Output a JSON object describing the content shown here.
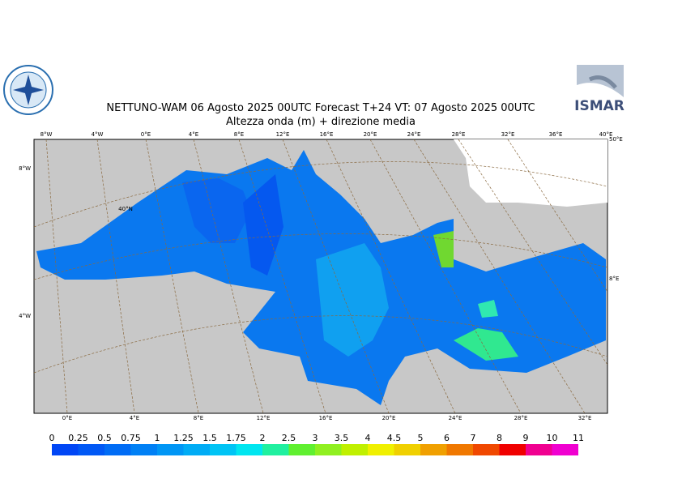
{
  "header": {
    "title": "NETTUNO-WAM  06   Agosto  2025 00UTC Forecast T+24 VT: 07   Agosto  2025 00UTC",
    "subtitle": "Altezza onda (m) + direzione media",
    "logo_right": "ISMAR"
  },
  "map": {
    "top_labels": [
      "8°W",
      "4°W",
      "0°E",
      "4°E",
      "8°E",
      "12°E",
      "16°E",
      "20°E",
      "24°E",
      "28°E",
      "32°E",
      "36°E",
      "40°E"
    ],
    "bottom_labels": [
      "0°E",
      "4°E",
      "8°E",
      "12°E",
      "16°E",
      "20°E",
      "24°E",
      "28°E",
      "32°E"
    ],
    "left_labels": [
      "8°W",
      "4°W"
    ],
    "right_labels": [
      "50°E",
      "8°E"
    ],
    "inner_labels": [
      "40°N"
    ]
  },
  "colorbar": {
    "levels": [
      0,
      0.25,
      0.5,
      0.75,
      1,
      1.25,
      1.5,
      1.75,
      2,
      2.5,
      3,
      3.5,
      4,
      4.5,
      5,
      6,
      7,
      8,
      9,
      10,
      11
    ],
    "colors": [
      "#0046f5",
      "#0058f5",
      "#006cf5",
      "#0080f5",
      "#0096f5",
      "#00acf5",
      "#00c4f5",
      "#00e6f0",
      "#20f0a0",
      "#60f030",
      "#90f020",
      "#c0f000",
      "#f0f000",
      "#f0d000",
      "#f0a000",
      "#f07800",
      "#f04800",
      "#f00000",
      "#f00090",
      "#f000d0"
    ]
  }
}
